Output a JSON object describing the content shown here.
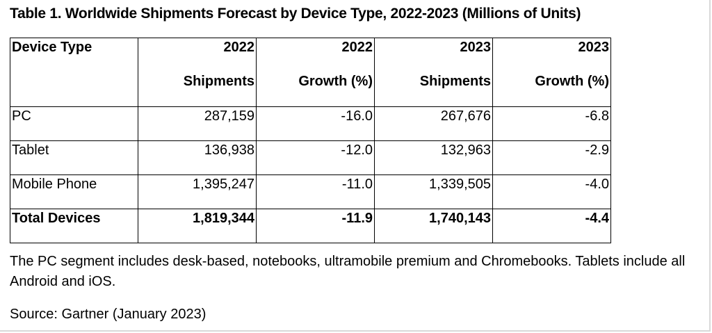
{
  "title": "Table 1. Worldwide Shipments Forecast by Device Type, 2022-2023 (Millions of Units)",
  "columns": [
    {
      "line1": "Device Type",
      "line2": ""
    },
    {
      "line1": "2022",
      "line2": "Shipments"
    },
    {
      "line1": "2022",
      "line2": "Growth (%)"
    },
    {
      "line1": "2023",
      "line2": "Shipments"
    },
    {
      "line1": "2023",
      "line2": "Growth (%)"
    }
  ],
  "rows": [
    {
      "device": "PC",
      "ship_2022": "287,159",
      "growth_2022": "-16.0",
      "ship_2023": "267,676",
      "growth_2023": "-6.8"
    },
    {
      "device": "Tablet",
      "ship_2022": "136,938",
      "growth_2022": "-12.0",
      "ship_2023": "132,963",
      "growth_2023": "-2.9"
    },
    {
      "device": "Mobile Phone",
      "ship_2022": "1,395,247",
      "growth_2022": "-11.0",
      "ship_2023": "1,339,505",
      "growth_2023": "-4.0"
    }
  ],
  "total": {
    "device": "Total Devices",
    "ship_2022": "1,819,344",
    "growth_2022": "-11.9",
    "ship_2023": "1,740,143",
    "growth_2023": "-4.4"
  },
  "note": "The PC segment includes desk-based, notebooks, ultramobile premium and Chromebooks. Tablets include all Android and iOS.",
  "source": "Source: Gartner (January 2023)"
}
